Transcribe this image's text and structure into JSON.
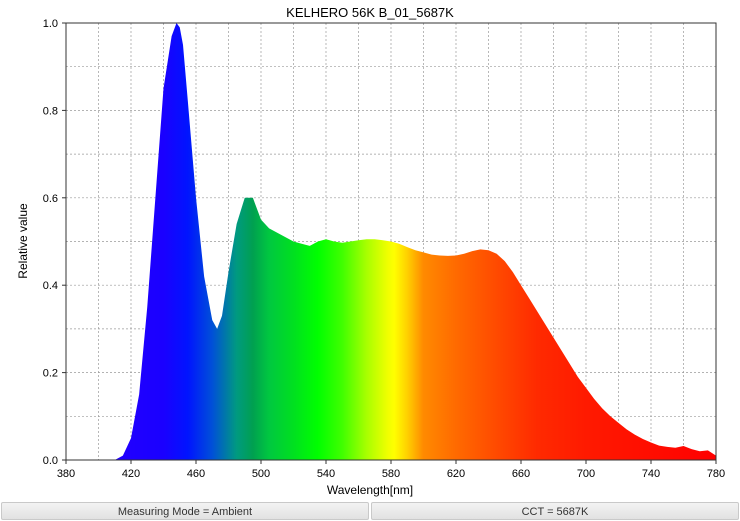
{
  "chart_data": {
    "type": "area",
    "title": "KELHERO 56K B_01_5687K",
    "xlabel": "Wavelength[nm]",
    "ylabel": "Relative value",
    "xlim": [
      380,
      780
    ],
    "ylim": [
      0,
      1.0
    ],
    "x_ticks": [
      "380",
      "420",
      "460",
      "500",
      "540",
      "580",
      "620",
      "660",
      "700",
      "740",
      "780"
    ],
    "y_ticks": [
      "0.0",
      "0.2",
      "0.4",
      "0.6",
      "0.8",
      "1.0"
    ],
    "grid": true,
    "fill": "spectral color gradient",
    "x": [
      410,
      415,
      420,
      425,
      430,
      435,
      440,
      445,
      448,
      450,
      452,
      455,
      460,
      465,
      470,
      473,
      476,
      480,
      485,
      490,
      495,
      500,
      505,
      510,
      515,
      520,
      525,
      530,
      535,
      540,
      545,
      550,
      555,
      560,
      565,
      570,
      575,
      580,
      585,
      590,
      595,
      600,
      605,
      610,
      615,
      620,
      625,
      630,
      635,
      640,
      645,
      650,
      655,
      660,
      665,
      670,
      675,
      680,
      685,
      690,
      695,
      700,
      705,
      710,
      715,
      720,
      725,
      730,
      735,
      740,
      745,
      750,
      755,
      760,
      765,
      770,
      775,
      780
    ],
    "y": [
      0.0,
      0.01,
      0.05,
      0.15,
      0.35,
      0.6,
      0.85,
      0.97,
      1.0,
      0.99,
      0.95,
      0.82,
      0.6,
      0.42,
      0.32,
      0.3,
      0.33,
      0.43,
      0.54,
      0.6,
      0.6,
      0.55,
      0.53,
      0.52,
      0.51,
      0.5,
      0.495,
      0.49,
      0.5,
      0.505,
      0.5,
      0.497,
      0.5,
      0.503,
      0.505,
      0.505,
      0.503,
      0.5,
      0.495,
      0.487,
      0.48,
      0.475,
      0.47,
      0.468,
      0.467,
      0.468,
      0.472,
      0.478,
      0.482,
      0.48,
      0.472,
      0.455,
      0.43,
      0.4,
      0.37,
      0.34,
      0.31,
      0.28,
      0.25,
      0.22,
      0.19,
      0.165,
      0.14,
      0.118,
      0.1,
      0.085,
      0.07,
      0.058,
      0.048,
      0.04,
      0.033,
      0.03,
      0.028,
      0.032,
      0.025,
      0.02,
      0.022,
      0.01
    ]
  },
  "footer": {
    "mode": "Measuring Mode = Ambient",
    "cct": "CCT = 5687K"
  }
}
